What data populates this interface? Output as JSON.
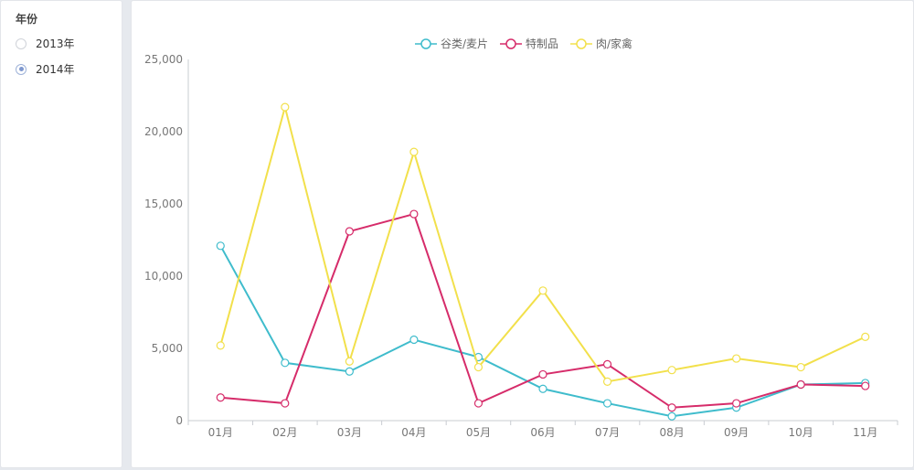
{
  "sidebar": {
    "title": "年份",
    "options": [
      {
        "label": "2013年",
        "selected": false
      },
      {
        "label": "2014年",
        "selected": true
      }
    ]
  },
  "chart_data": {
    "type": "line",
    "categories": [
      "01月",
      "02月",
      "03月",
      "04月",
      "05月",
      "06月",
      "07月",
      "08月",
      "09月",
      "10月",
      "11月"
    ],
    "series": [
      {
        "name": "谷类/麦片",
        "color": "#3fbccc",
        "values": [
          12100,
          4000,
          3400,
          5600,
          4400,
          2200,
          1200,
          300,
          900,
          2500,
          2600
        ]
      },
      {
        "name": "特制品",
        "color": "#d62c6a",
        "values": [
          1600,
          1200,
          13100,
          14300,
          1200,
          3200,
          3900,
          900,
          1200,
          2500,
          2400
        ]
      },
      {
        "name": "肉/家禽",
        "color": "#f2e04b",
        "values": [
          5200,
          21700,
          4100,
          18600,
          3700,
          9000,
          2700,
          3500,
          4300,
          3700,
          5800
        ]
      }
    ],
    "yticks": [
      "0",
      "5,000",
      "10,000",
      "15,000",
      "20,000",
      "25,000"
    ],
    "ylim": [
      0,
      25000
    ],
    "legend": "top-center",
    "grid": false
  }
}
